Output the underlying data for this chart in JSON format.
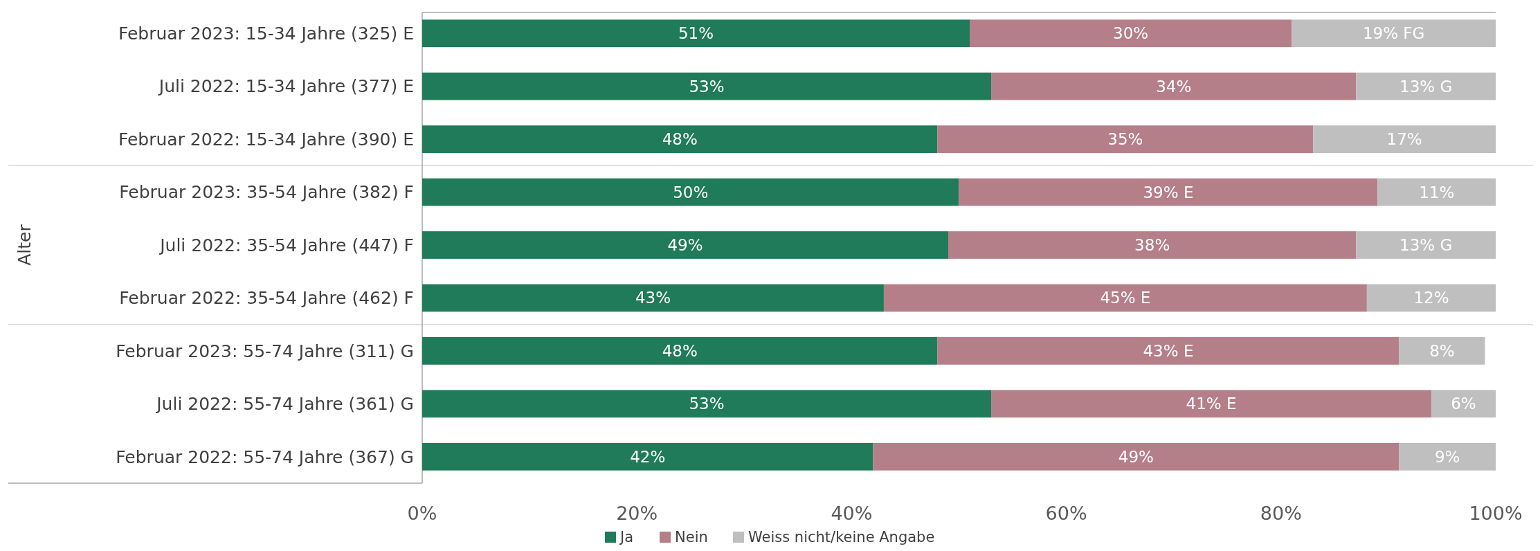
{
  "chart_data": {
    "type": "bar",
    "orientation": "horizontal",
    "stacked": true,
    "ylabel": "Alter",
    "categories": [
      "Februar 2023: 15-34 Jahre (325) E",
      "Juli 2022: 15-34 Jahre (377) E",
      "Februar 2022: 15-34 Jahre (390) E",
      "Februar 2023: 35-54 Jahre (382) F",
      "Juli 2022: 35-54 Jahre (447) F",
      "Februar 2022: 35-54 Jahre (462) F",
      "Februar 2023: 55-74 Jahre (311) G",
      "Juli 2022: 55-74 Jahre (361) G",
      "Februar 2022: 55-74 Jahre (367) G"
    ],
    "series": [
      {
        "name": "Ja",
        "color": "#1f7b5a",
        "values": [
          51,
          53,
          48,
          50,
          49,
          43,
          48,
          53,
          42
        ],
        "value_labels": [
          "51%",
          "53%",
          "48%",
          "50%",
          "49%",
          "43%",
          "48%",
          "53%",
          "42%"
        ]
      },
      {
        "name": "Nein",
        "color": "#b57f8a",
        "values": [
          30,
          34,
          35,
          39,
          38,
          45,
          43,
          41,
          49
        ],
        "value_labels": [
          "30%",
          "34%",
          "35%",
          "39% E",
          "38%",
          "45% E",
          "43% E",
          "41% E",
          "49%"
        ]
      },
      {
        "name": "Weiss nicht/keine Angabe",
        "color": "#bfbfbf",
        "values": [
          19,
          13,
          17,
          11,
          13,
          12,
          8,
          6,
          9
        ],
        "value_labels": [
          "19% FG",
          "13% G",
          "17%",
          "11%",
          "13% G",
          "12%",
          "8%",
          "6%",
          "9%"
        ]
      }
    ],
    "xlim": [
      0,
      100
    ],
    "xticks": [
      {
        "value": 0,
        "label": "0%"
      },
      {
        "value": 20,
        "label": "20%"
      },
      {
        "value": 40,
        "label": "40%"
      },
      {
        "value": 60,
        "label": "60%"
      },
      {
        "value": 80,
        "label": "80%"
      },
      {
        "value": 100,
        "label": "100%"
      }
    ],
    "legend": "bottom"
  }
}
